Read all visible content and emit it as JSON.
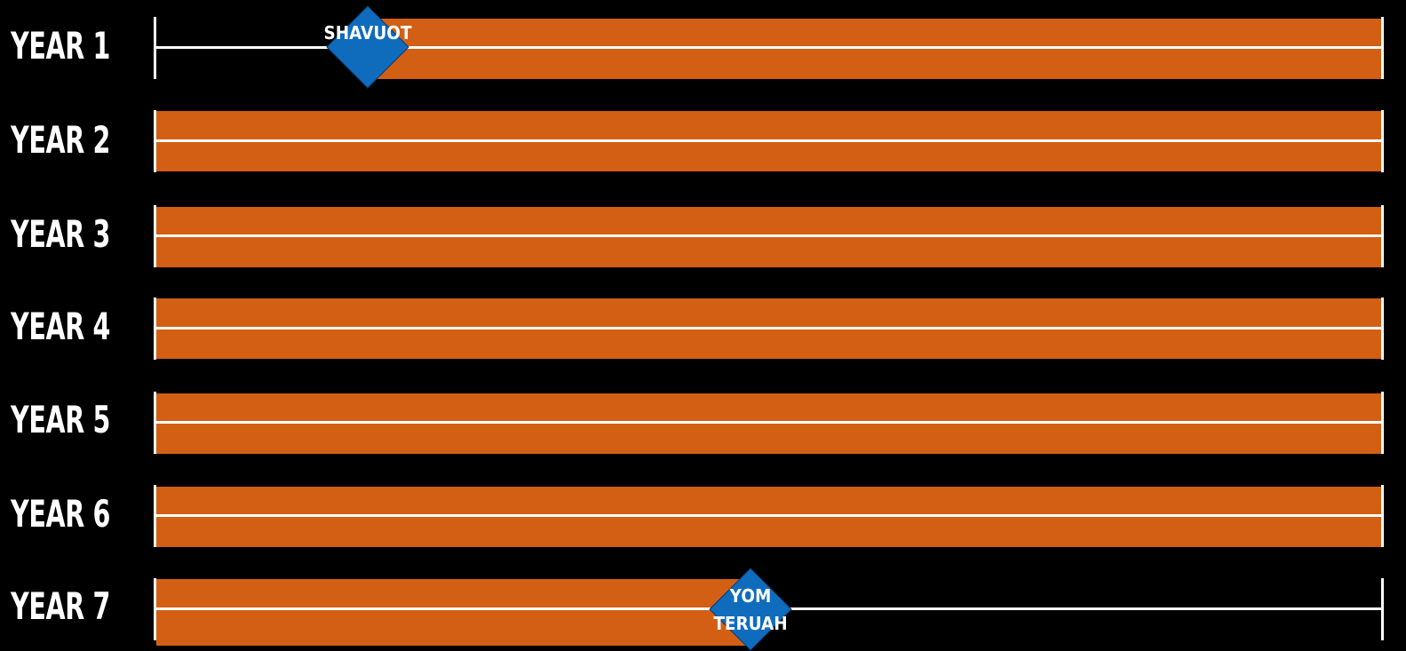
{
  "years": [
    {
      "label": "YEAR 1"
    },
    {
      "label": "YEAR 2"
    },
    {
      "label": "YEAR 3"
    },
    {
      "label": "YEAR 4"
    },
    {
      "label": "YEAR 5"
    },
    {
      "label": "YEAR 6"
    },
    {
      "label": "YEAR 7"
    }
  ],
  "markers": {
    "shavuot": {
      "label": "SHAVUOT"
    },
    "yom_teruah": {
      "line1": "YOM",
      "line2": "TERUAH"
    }
  },
  "colors": {
    "background": "#000000",
    "bar": "#d35f14",
    "line": "#ffffff",
    "marker": "#0f6cbd"
  }
}
